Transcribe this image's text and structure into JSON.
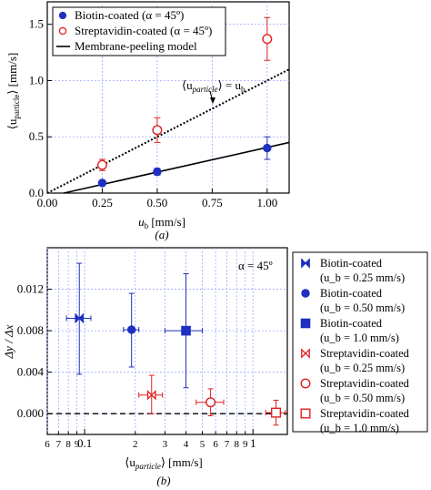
{
  "chart_data": [
    {
      "type": "scatter",
      "panel_label": "(a)",
      "xlabel": "u_b [mm/s]",
      "ylabel": "⟨u_particle⟩ [mm/s]",
      "xlim": [
        0,
        1.1
      ],
      "ylim": [
        0,
        1.7
      ],
      "x_ticks": [
        "0.00",
        "0.25",
        "0.50",
        "0.75",
        "1.00"
      ],
      "y_ticks": [
        "0.0",
        "0.5",
        "1.0",
        "1.5"
      ],
      "grid": true,
      "legend_position": "top-left",
      "legend": [
        "Biotin-coated (α = 45º)",
        "Streptavidin-coated (α = 45º)",
        "Membrane-peeling model"
      ],
      "annotation": "⟨u_particle⟩ = u_b",
      "series": [
        {
          "name": "Biotin-coated (α = 45º)",
          "marker": "filled-circle",
          "color": "#1f2fbf",
          "x": [
            0.25,
            0.5,
            1.0
          ],
          "y": [
            0.09,
            0.19,
            0.4
          ],
          "yerr": [
            0.015,
            0.03,
            0.1
          ]
        },
        {
          "name": "Streptavidin-coated (α = 45º)",
          "marker": "open-circle",
          "color": "#e02020",
          "x": [
            0.25,
            0.5,
            1.0
          ],
          "y": [
            0.25,
            0.56,
            1.37
          ],
          "yerr": [
            0.05,
            0.11,
            0.19
          ]
        }
      ],
      "lines": [
        {
          "name": "identity",
          "style": "dotted",
          "x": [
            0,
            1.1
          ],
          "y": [
            0,
            1.1
          ]
        },
        {
          "name": "Membrane-peeling model",
          "style": "solid",
          "x": [
            0.075,
            1.1
          ],
          "y": [
            0,
            0.45
          ]
        }
      ]
    },
    {
      "type": "scatter",
      "panel_label": "(b)",
      "xlabel": "⟨u_particle⟩ [mm/s]",
      "ylabel": "Δy / Δx",
      "xscale": "log",
      "xlim": [
        0.06,
        1.6
      ],
      "ylim": [
        -0.002,
        0.016
      ],
      "x_ticks": [
        "6",
        "7",
        "8",
        "9",
        "0.1",
        "2",
        "3",
        "4",
        "5",
        "6",
        "7",
        "8",
        "9",
        "1"
      ],
      "y_ticks": [
        "0.000",
        "0.004",
        "0.008",
        "0.012"
      ],
      "grid": true,
      "annotation": "α = 45º",
      "legend_position": "right",
      "legend": [
        "Biotin-coated",
        "(u_b = 0.25 mm/s)",
        "Biotin-coated",
        "(u_b = 0.50 mm/s)",
        "Biotin-coated",
        "(u_b = 1.0 mm/s)",
        "Streptavidin-coated",
        "(u_b = 0.25 mm/s)",
        "Streptavidin-coated",
        "(u_b = 0.50 mm/s)",
        "Streptavidin-coated",
        "(u_b = 1.0 mm/s)"
      ],
      "series": [
        {
          "name": "Biotin-coated (u_b = 0.25 mm/s)",
          "marker": "bowtie-filled",
          "color": "#1f2fbf",
          "x": [
            0.093
          ],
          "y": [
            0.0092
          ],
          "xerr_lo": [
            0.015
          ],
          "xerr_hi": [
            0.016
          ],
          "yerr_lo": [
            0.0054
          ],
          "yerr_hi": [
            0.0053
          ]
        },
        {
          "name": "Biotin-coated (u_b = 0.50 mm/s)",
          "marker": "filled-circle",
          "color": "#1f2fbf",
          "x": [
            0.19
          ],
          "y": [
            0.0081
          ],
          "xerr_lo": [
            0.02
          ],
          "xerr_hi": [
            0.02
          ],
          "yerr_lo": [
            0.0036
          ],
          "yerr_hi": [
            0.0035
          ]
        },
        {
          "name": "Biotin-coated (u_b = 1.0 mm/s)",
          "marker": "filled-square",
          "color": "#1f2fbf",
          "x": [
            0.4
          ],
          "y": [
            0.008
          ],
          "xerr_lo": [
            0.1
          ],
          "xerr_hi": [
            0.1
          ],
          "yerr_lo": [
            0.0055
          ],
          "yerr_hi": [
            0.0055
          ]
        },
        {
          "name": "Streptavidin-coated (u_b = 0.25 mm/s)",
          "marker": "bowtie-open",
          "color": "#e02020",
          "x": [
            0.25
          ],
          "y": [
            0.0018
          ],
          "xerr_lo": [
            0.04
          ],
          "xerr_hi": [
            0.04
          ],
          "yerr_lo": [
            0.0018
          ],
          "yerr_hi": [
            0.0019
          ]
        },
        {
          "name": "Streptavidin-coated (u_b = 0.50 mm/s)",
          "marker": "open-circle",
          "color": "#e02020",
          "x": [
            0.56
          ],
          "y": [
            0.0011
          ],
          "xerr_lo": [
            0.1
          ],
          "xerr_hi": [
            0.11
          ],
          "yerr_lo": [
            0.0013
          ],
          "yerr_hi": [
            0.0013
          ]
        },
        {
          "name": "Streptavidin-coated (u_b = 1.0 mm/s)",
          "marker": "open-square",
          "color": "#e02020",
          "x": [
            1.37
          ],
          "y": [
            0.0001
          ],
          "xerr_lo": [
            0.18
          ],
          "xerr_hi": [
            0.19
          ],
          "yerr_lo": [
            0.0012
          ],
          "yerr_hi": [
            0.0012
          ]
        }
      ],
      "lines": [
        {
          "name": "zero",
          "style": "dashed",
          "x": [
            0.06,
            1.6
          ],
          "y": [
            0,
            0
          ]
        }
      ]
    }
  ],
  "labels": {
    "a_ylabel_main": "⟨u",
    "a_ylabel_sub": "particle",
    "a_ylabel_tail": "⟩ [mm/s]",
    "a_xlabel_main": "u",
    "a_xlabel_sub": "b",
    "a_xlabel_tail": " [mm/s]",
    "a_annot_1": "⟨u",
    "a_annot_sub1": "particle",
    "a_annot_2": "⟩ = u",
    "a_annot_sub2": "b",
    "b_ylabel": "Δy / Δx",
    "b_xlabel_main": "⟨u",
    "b_xlabel_sub": "particle",
    "b_xlabel_tail": "⟩ [mm/s]",
    "b_alpha": "α = 45º"
  },
  "colors": {
    "blue": "#1f2fbf",
    "red": "#e02020",
    "grid": "#9aa8ff"
  }
}
